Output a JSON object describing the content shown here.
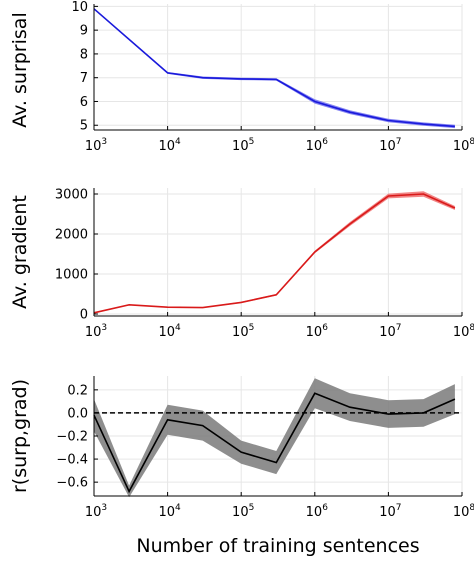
{
  "chart_data": [
    {
      "type": "line",
      "ylabel": "Av. surprisal",
      "xlabel": "",
      "xscale": "log",
      "xlim": [
        1000,
        100000000
      ],
      "ylim": [
        4.8,
        10.1
      ],
      "yticks": [
        5,
        6,
        7,
        8,
        9,
        10
      ],
      "ytick_labels": [
        "5",
        "6",
        "7",
        "8",
        "9",
        "10"
      ],
      "grid": true,
      "color": "#1a1adb",
      "band_color": "#6f6ff0",
      "x": [
        1000,
        10000,
        30000,
        100000,
        300000,
        1000000,
        3000000,
        10000000,
        30000000,
        80000000
      ],
      "values": [
        9.9,
        7.2,
        7.0,
        6.95,
        6.93,
        6.0,
        5.55,
        5.2,
        5.05,
        4.95
      ],
      "band": [
        0.02,
        0.04,
        0.05,
        0.05,
        0.05,
        0.09,
        0.08,
        0.07,
        0.07,
        0.07
      ]
    },
    {
      "type": "line",
      "ylabel": "Av. gradient",
      "xlabel": "",
      "xscale": "log",
      "xlim": [
        1000,
        100000000
      ],
      "ylim": [
        -50,
        3150
      ],
      "yticks": [
        0,
        1000,
        2000,
        3000
      ],
      "ytick_labels": [
        "0",
        "1000",
        "2000",
        "3000"
      ],
      "grid": true,
      "color": "#d91a1a",
      "band_color": "#f07070",
      "x": [
        1000,
        3000,
        10000,
        30000,
        100000,
        300000,
        1000000,
        3000000,
        10000000,
        30000000,
        80000000
      ],
      "values": [
        30,
        230,
        170,
        160,
        290,
        480,
        1550,
        2250,
        2950,
        3000,
        2650
      ],
      "band": [
        5,
        10,
        10,
        10,
        15,
        20,
        30,
        50,
        60,
        70,
        50
      ]
    },
    {
      "type": "line",
      "ylabel": "r(surp,grad)",
      "xlabel": "Number of training sentences",
      "xscale": "log",
      "xlim": [
        1000,
        100000000
      ],
      "ylim": [
        -0.72,
        0.32
      ],
      "yticks": [
        -0.6,
        -0.4,
        -0.2,
        0.0,
        0.2
      ],
      "ytick_labels": [
        "−0.6",
        "−0.4",
        "−0.2",
        "0.0",
        "0.2"
      ],
      "grid": true,
      "color": "#000000",
      "band_color": "#7a7a7a",
      "reference_line": 0.0,
      "x": [
        1000,
        3000,
        10000,
        30000,
        100000,
        300000,
        1000000,
        3000000,
        10000000,
        30000000,
        80000000
      ],
      "values": [
        -0.02,
        -0.68,
        -0.06,
        -0.11,
        -0.34,
        -0.43,
        0.17,
        0.05,
        -0.01,
        0.0,
        0.12
      ],
      "band": [
        0.14,
        0.05,
        0.13,
        0.13,
        0.1,
        0.1,
        0.13,
        0.12,
        0.12,
        0.12,
        0.13
      ]
    }
  ],
  "xtick_values": [
    1000,
    10000,
    100000,
    1000000,
    10000000,
    100000000
  ],
  "xtick_base": "10",
  "xtick_exponents": [
    "3",
    "4",
    "5",
    "6",
    "7",
    "8"
  ]
}
